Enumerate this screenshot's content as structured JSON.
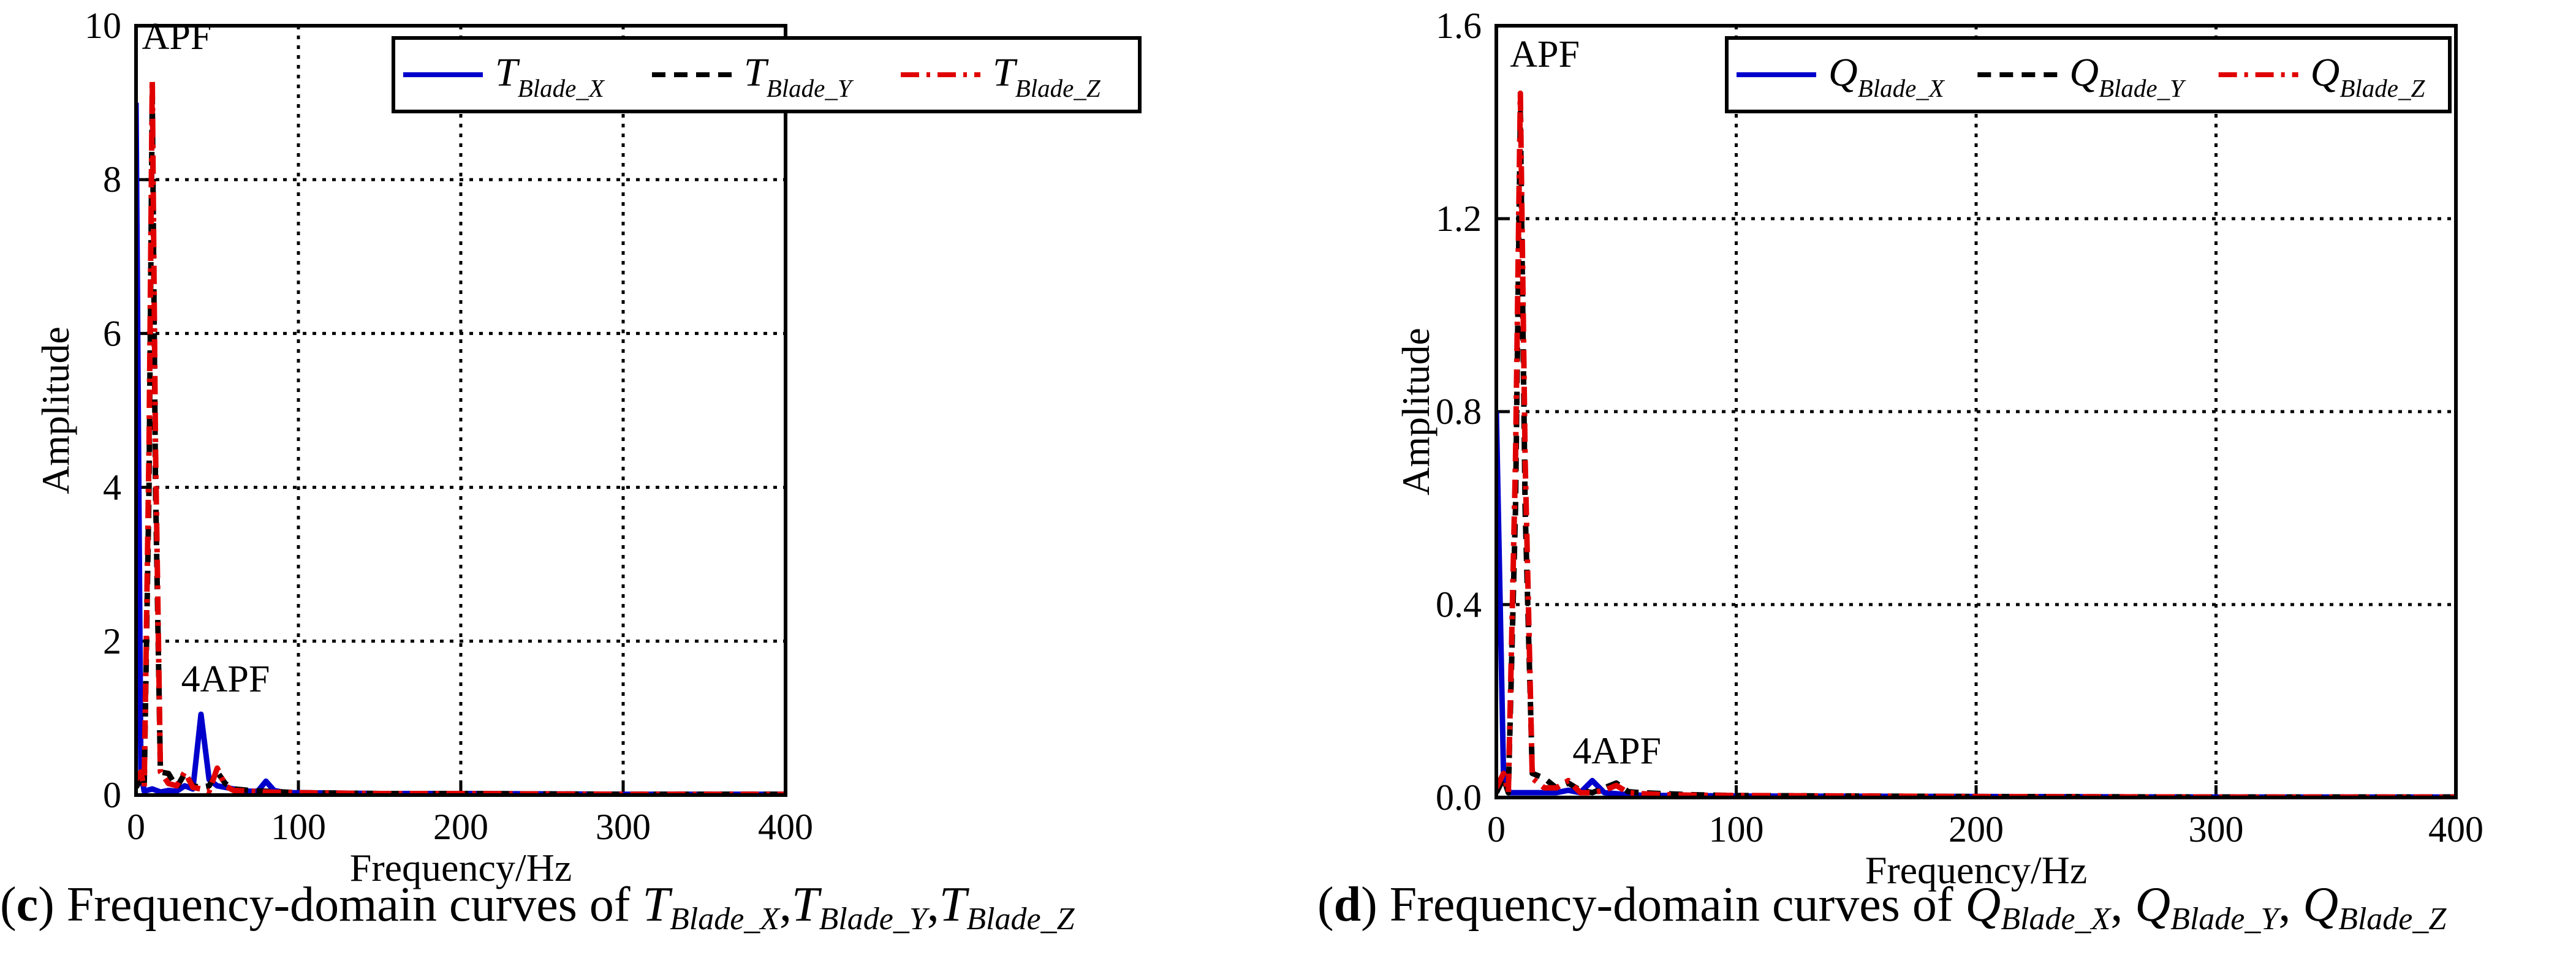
{
  "chart_data": [
    {
      "type": "line",
      "panel_label": "c",
      "caption": {
        "label": "c",
        "text": "Frequency-domain curves of",
        "series_symbols": [
          {
            "base": "T",
            "sub": "Blade_X"
          },
          {
            "base": "T",
            "sub": "Blade_Y"
          },
          {
            "base": "T",
            "sub": "Blade_Z"
          }
        ],
        "separator": ","
      },
      "title": "",
      "xlabel": "Frequency/Hz",
      "ylabel": "Amplitude",
      "xlim": [
        0,
        400
      ],
      "ylim": [
        0,
        10
      ],
      "xticks": [
        0,
        100,
        200,
        300,
        400
      ],
      "yticks": [
        0,
        2,
        4,
        6,
        8,
        10
      ],
      "tick_labels_y": [
        "0",
        "2",
        "4",
        "6",
        "8",
        "10"
      ],
      "grid": "dotted",
      "legend_position": "top-right",
      "annotations": [
        {
          "text": "APF",
          "x": 10,
          "y": 9.6
        },
        {
          "text": "4APF",
          "x": 40,
          "y": 1.25
        }
      ],
      "series": [
        {
          "name": "T_Blade_X",
          "base": "T",
          "sub": "Blade_X",
          "color": "#0000cc",
          "style": "solid",
          "x": [
            0,
            3,
            5,
            10,
            15,
            20,
            25,
            30,
            35,
            40,
            45,
            50,
            55,
            60,
            65,
            70,
            75,
            80,
            85,
            90,
            95,
            100,
            150,
            200,
            300,
            400
          ],
          "y": [
            9.0,
            0.3,
            0.05,
            0.08,
            0.04,
            0.06,
            0.05,
            0.12,
            0.08,
            1.05,
            0.2,
            0.12,
            0.1,
            0.08,
            0.06,
            0.05,
            0.05,
            0.18,
            0.06,
            0.04,
            0.03,
            0.03,
            0.02,
            0.02,
            0.01,
            0.01
          ]
        },
        {
          "name": "T_Blade_Y",
          "base": "T",
          "sub": "Blade_Y",
          "color": "#000000",
          "style": "dashed",
          "x": [
            0,
            3,
            5,
            8,
            10,
            12,
            15,
            20,
            25,
            30,
            35,
            40,
            45,
            50,
            55,
            60,
            70,
            80,
            100,
            150,
            200,
            300,
            400
          ],
          "y": [
            0.1,
            0.2,
            0.1,
            4.0,
            9.1,
            4.0,
            0.3,
            0.28,
            0.1,
            0.28,
            0.12,
            0.1,
            0.12,
            0.3,
            0.15,
            0.08,
            0.06,
            0.05,
            0.03,
            0.02,
            0.02,
            0.01,
            0.01
          ]
        },
        {
          "name": "T_Blade_Z",
          "base": "T",
          "sub": "Blade_Z",
          "color": "#e00000",
          "style": "dashdot",
          "x": [
            0,
            3,
            5,
            8,
            10,
            12,
            15,
            20,
            25,
            30,
            35,
            40,
            45,
            50,
            55,
            60,
            70,
            80,
            100,
            150,
            200,
            300,
            400
          ],
          "y": [
            0.2,
            0.3,
            0.1,
            4.5,
            9.3,
            4.5,
            0.3,
            0.15,
            0.12,
            0.3,
            0.1,
            0.08,
            0.05,
            0.35,
            0.12,
            0.06,
            0.05,
            0.04,
            0.03,
            0.02,
            0.02,
            0.01,
            0.01
          ]
        }
      ]
    },
    {
      "type": "line",
      "panel_label": "d",
      "caption": {
        "label": "d",
        "text": "Frequency-domain curves of",
        "series_symbols": [
          {
            "base": "Q",
            "sub": "Blade_X"
          },
          {
            "base": "Q",
            "sub": "Blade_Y"
          },
          {
            "base": "Q",
            "sub": "Blade_Z"
          }
        ],
        "separator": ", "
      },
      "title": "",
      "xlabel": "Frequency/Hz",
      "ylabel": "Amplitude",
      "xlim": [
        0,
        400
      ],
      "ylim": [
        0,
        1.6
      ],
      "xticks": [
        0,
        100,
        200,
        300,
        400
      ],
      "yticks": [
        0,
        0.4,
        0.8,
        1.2,
        1.6
      ],
      "tick_labels_y": [
        "0.0",
        "0.4",
        "0.8",
        "1.2",
        "1.6"
      ],
      "grid": "dotted",
      "legend_position": "top-right",
      "annotations": [
        {
          "text": "APF",
          "x": 10,
          "y": 1.5
        },
        {
          "text": "4APF",
          "x": 40,
          "y": 0.055
        }
      ],
      "series": [
        {
          "name": "Q_Blade_X",
          "base": "Q",
          "sub": "Blade_X",
          "color": "#0000cc",
          "style": "solid",
          "x": [
            0,
            3,
            5,
            10,
            15,
            20,
            25,
            30,
            35,
            40,
            45,
            50,
            55,
            60,
            70,
            80,
            100,
            200,
            300,
            400
          ],
          "y": [
            0.8,
            0.05,
            0.01,
            0.01,
            0.01,
            0.01,
            0.01,
            0.015,
            0.01,
            0.035,
            0.01,
            0.008,
            0.006,
            0.005,
            0.004,
            0.004,
            0.003,
            0.002,
            0.001,
            0.001
          ]
        },
        {
          "name": "Q_Blade_Y",
          "base": "Q",
          "sub": "Blade_Y",
          "color": "#000000",
          "style": "dashed",
          "x": [
            0,
            3,
            5,
            8,
            10,
            12,
            15,
            20,
            25,
            30,
            35,
            40,
            45,
            50,
            55,
            60,
            70,
            80,
            100,
            200,
            300,
            400
          ],
          "y": [
            0.01,
            0.04,
            0.01,
            0.6,
            1.42,
            0.6,
            0.05,
            0.04,
            0.02,
            0.03,
            0.015,
            0.01,
            0.02,
            0.03,
            0.012,
            0.01,
            0.008,
            0.006,
            0.004,
            0.002,
            0.001,
            0.001
          ]
        },
        {
          "name": "Q_Blade_Z",
          "base": "Q",
          "sub": "Blade_Z",
          "color": "#e00000",
          "style": "dashdot",
          "x": [
            0,
            3,
            5,
            8,
            10,
            12,
            15,
            20,
            25,
            30,
            35,
            40,
            45,
            50,
            55,
            60,
            70,
            80,
            100,
            200,
            300,
            400
          ],
          "y": [
            0.02,
            0.05,
            0.01,
            0.7,
            1.46,
            0.7,
            0.04,
            0.02,
            0.02,
            0.035,
            0.01,
            0.01,
            0.015,
            0.025,
            0.01,
            0.008,
            0.006,
            0.005,
            0.004,
            0.002,
            0.001,
            0.001
          ]
        }
      ]
    }
  ]
}
